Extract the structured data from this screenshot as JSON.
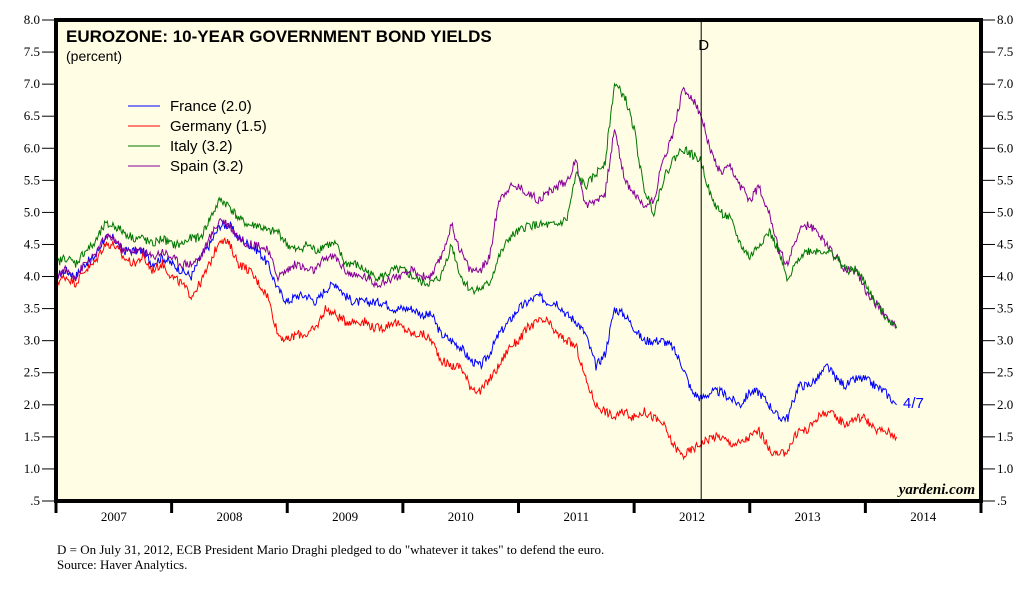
{
  "chart_data": {
    "type": "line",
    "title": "EUROZONE: 10-YEAR GOVERNMENT BOND YIELDS",
    "subtitle": "(percent)",
    "xlabel": "",
    "ylabel": "",
    "ylim": [
      0.5,
      8.0
    ],
    "xlim": [
      2007.0,
      2015.0
    ],
    "yticks": [
      ".5",
      "1.0",
      "1.5",
      "2.0",
      "2.5",
      "3.0",
      "3.5",
      "4.0",
      "4.5",
      "5.0",
      "5.5",
      "6.0",
      "6.5",
      "7.0",
      "7.5",
      "8.0"
    ],
    "ytick_values": [
      0.5,
      1.0,
      1.5,
      2.0,
      2.5,
      3.0,
      3.5,
      4.0,
      4.5,
      5.0,
      5.5,
      6.0,
      6.5,
      7.0,
      7.5,
      8.0
    ],
    "xticks": [
      "2007",
      "2008",
      "2009",
      "2010",
      "2011",
      "2012",
      "2013",
      "2014"
    ],
    "grid": false,
    "legend_placement": "top-left",
    "background_color": "#fffde3",
    "x": [
      2007.0,
      2007.08,
      2007.17,
      2007.25,
      2007.33,
      2007.42,
      2007.5,
      2007.58,
      2007.67,
      2007.75,
      2007.83,
      2007.92,
      2008.0,
      2008.08,
      2008.17,
      2008.25,
      2008.33,
      2008.42,
      2008.5,
      2008.58,
      2008.67,
      2008.75,
      2008.83,
      2008.92,
      2009.0,
      2009.08,
      2009.17,
      2009.25,
      2009.33,
      2009.42,
      2009.5,
      2009.58,
      2009.67,
      2009.75,
      2009.83,
      2009.92,
      2010.0,
      2010.08,
      2010.17,
      2010.25,
      2010.33,
      2010.42,
      2010.5,
      2010.58,
      2010.67,
      2010.75,
      2010.83,
      2010.92,
      2011.0,
      2011.08,
      2011.17,
      2011.25,
      2011.33,
      2011.42,
      2011.5,
      2011.58,
      2011.67,
      2011.75,
      2011.83,
      2011.92,
      2012.0,
      2012.08,
      2012.17,
      2012.25,
      2012.33,
      2012.42,
      2012.5,
      2012.58,
      2012.67,
      2012.75,
      2012.83,
      2012.92,
      2013.0,
      2013.08,
      2013.17,
      2013.25,
      2013.33,
      2013.42,
      2013.5,
      2013.58,
      2013.67,
      2013.75,
      2013.83,
      2013.92,
      2014.0,
      2014.08,
      2014.17,
      2014.27
    ],
    "series": [
      {
        "name": "France (2.0)",
        "color": "#0000ff",
        "values": [
          4.0,
          4.1,
          4.0,
          4.2,
          4.3,
          4.6,
          4.6,
          4.4,
          4.4,
          4.4,
          4.2,
          4.3,
          4.2,
          4.1,
          4.0,
          4.3,
          4.5,
          4.8,
          4.8,
          4.6,
          4.5,
          4.4,
          4.2,
          3.8,
          3.6,
          3.7,
          3.7,
          3.6,
          3.8,
          3.9,
          3.7,
          3.6,
          3.6,
          3.6,
          3.6,
          3.5,
          3.5,
          3.5,
          3.4,
          3.4,
          3.1,
          3.0,
          2.9,
          2.7,
          2.6,
          2.8,
          3.1,
          3.3,
          3.5,
          3.6,
          3.7,
          3.6,
          3.6,
          3.4,
          3.3,
          3.1,
          2.6,
          2.8,
          3.5,
          3.4,
          3.2,
          3.0,
          3.0,
          3.0,
          2.9,
          2.6,
          2.2,
          2.1,
          2.2,
          2.2,
          2.1,
          2.0,
          2.2,
          2.2,
          2.0,
          1.8,
          1.8,
          2.3,
          2.3,
          2.4,
          2.6,
          2.4,
          2.3,
          2.4,
          2.4,
          2.3,
          2.2,
          2.0
        ]
      },
      {
        "name": "Germany (1.5)",
        "color": "#ff0000",
        "values": [
          3.9,
          4.0,
          3.9,
          4.1,
          4.2,
          4.5,
          4.5,
          4.3,
          4.2,
          4.3,
          4.1,
          4.2,
          4.0,
          3.9,
          3.7,
          3.9,
          4.2,
          4.6,
          4.5,
          4.2,
          4.1,
          3.9,
          3.7,
          3.1,
          3.0,
          3.1,
          3.1,
          3.2,
          3.5,
          3.4,
          3.3,
          3.3,
          3.3,
          3.2,
          3.2,
          3.3,
          3.2,
          3.1,
          3.1,
          3.0,
          2.7,
          2.6,
          2.6,
          2.3,
          2.2,
          2.4,
          2.6,
          2.9,
          3.0,
          3.2,
          3.3,
          3.3,
          3.1,
          3.0,
          2.9,
          2.4,
          2.0,
          1.9,
          1.8,
          1.9,
          1.8,
          1.9,
          1.8,
          1.7,
          1.4,
          1.2,
          1.3,
          1.4,
          1.5,
          1.5,
          1.4,
          1.4,
          1.5,
          1.6,
          1.3,
          1.2,
          1.3,
          1.6,
          1.6,
          1.8,
          1.9,
          1.8,
          1.7,
          1.8,
          1.8,
          1.6,
          1.6,
          1.5
        ]
      },
      {
        "name": "Italy (3.2)",
        "color": "#007700",
        "values": [
          4.2,
          4.3,
          4.2,
          4.4,
          4.5,
          4.8,
          4.8,
          4.7,
          4.6,
          4.6,
          4.5,
          4.6,
          4.5,
          4.5,
          4.6,
          4.6,
          4.9,
          5.2,
          5.1,
          4.9,
          4.8,
          4.8,
          4.7,
          4.7,
          4.5,
          4.4,
          4.5,
          4.4,
          4.5,
          4.5,
          4.2,
          4.2,
          4.1,
          4.0,
          4.0,
          4.1,
          4.1,
          4.0,
          3.9,
          3.9,
          4.0,
          4.5,
          4.0,
          3.8,
          3.8,
          3.9,
          4.3,
          4.6,
          4.7,
          4.8,
          4.8,
          4.8,
          4.8,
          4.9,
          5.6,
          5.4,
          5.6,
          5.8,
          7.0,
          6.8,
          6.3,
          5.4,
          5.0,
          5.5,
          5.8,
          6.0,
          5.9,
          5.8,
          5.2,
          5.0,
          4.9,
          4.5,
          4.3,
          4.5,
          4.7,
          4.4,
          3.9,
          4.3,
          4.4,
          4.4,
          4.4,
          4.3,
          4.1,
          4.1,
          3.9,
          3.6,
          3.4,
          3.2
        ]
      },
      {
        "name": "Spain (3.2)",
        "color": "#880099",
        "values": [
          4.0,
          4.1,
          4.0,
          4.2,
          4.3,
          4.6,
          4.6,
          4.4,
          4.4,
          4.4,
          4.3,
          4.4,
          4.3,
          4.2,
          4.2,
          4.3,
          4.6,
          4.9,
          4.8,
          4.6,
          4.5,
          4.5,
          4.4,
          4.0,
          4.1,
          4.2,
          4.1,
          4.1,
          4.3,
          4.3,
          4.1,
          4.0,
          4.0,
          3.9,
          3.9,
          4.0,
          4.0,
          4.1,
          4.0,
          4.0,
          4.3,
          4.8,
          4.4,
          4.1,
          4.1,
          4.3,
          5.2,
          5.4,
          5.4,
          5.3,
          5.2,
          5.3,
          5.4,
          5.5,
          5.8,
          5.1,
          5.2,
          5.3,
          6.3,
          5.5,
          5.3,
          5.1,
          5.2,
          5.8,
          6.2,
          6.9,
          6.8,
          6.5,
          5.9,
          5.6,
          5.7,
          5.4,
          5.2,
          5.4,
          5.0,
          4.4,
          4.2,
          4.7,
          4.8,
          4.7,
          4.5,
          4.3,
          4.1,
          4.1,
          3.8,
          3.6,
          3.4,
          3.2
        ]
      }
    ],
    "annotations": {
      "vline_label": "D",
      "vline_x": 2012.58,
      "end_label": "4/7",
      "end_label_color": "#0000ff",
      "watermark": "yardeni.com"
    }
  },
  "footnotes": {
    "line1": "D = On July 31, 2012, ECB President Mario Draghi pledged to do \"whatever it takes\" to defend the euro.",
    "line2": "Source: Haver Analytics."
  }
}
